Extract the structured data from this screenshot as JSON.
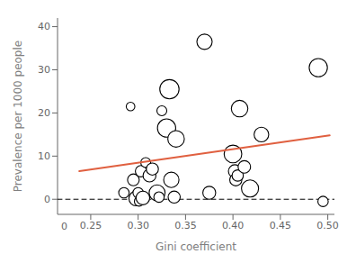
{
  "chart_data": {
    "type": "scatter",
    "xlabel": "Gini coefficient",
    "ylabel": "Prevalence per 1000 people",
    "xlim": [
      0.215,
      0.507
    ],
    "ylim": [
      -3.5,
      42
    ],
    "xticks": [
      0.25,
      {
        "value": 0.3,
        "label": "0.30"
      },
      0.35,
      {
        "value": 0.4,
        "label": "0.40"
      },
      0.45,
      {
        "value": 0.5,
        "label": "0.50"
      }
    ],
    "yticks": [
      0,
      10,
      20,
      30,
      40
    ],
    "grid": false,
    "annotations": [
      {
        "text": "0",
        "x": 0.222,
        "y": -3.5
      }
    ],
    "series": [
      {
        "type": "line",
        "line_style": "dashed",
        "color": "black",
        "x": [
          0.215,
          0.507
        ],
        "values": [
          0.0,
          0.0
        ]
      },
      {
        "type": "scatter",
        "marker": "circle",
        "color": "black",
        "x": [
          0.285,
          0.292,
          0.295,
          0.298,
          0.3,
          0.301,
          0.303,
          0.305,
          0.308,
          0.312,
          0.315,
          0.32,
          0.322,
          0.325,
          0.33,
          0.333,
          0.335,
          0.338,
          0.34,
          0.37,
          0.375,
          0.4,
          0.402,
          0.403,
          0.405,
          0.407,
          0.412,
          0.418,
          0.43,
          0.49,
          0.495
        ],
        "values": [
          1.5,
          21.5,
          4.5,
          0.2,
          1.5,
          -0.5,
          6.5,
          0.3,
          8.5,
          5.5,
          7.0,
          1.5,
          0.5,
          20.5,
          16.5,
          25.5,
          4.5,
          0.5,
          14.0,
          36.5,
          1.5,
          10.5,
          6.5,
          4.5,
          5.5,
          21.0,
          7.5,
          2.5,
          15.0,
          30.5,
          -0.5
        ],
        "sizes": [
          55,
          38,
          70,
          110,
          55,
          45,
          65,
          95,
          50,
          85,
          75,
          130,
          55,
          50,
          170,
          190,
          120,
          75,
          140,
          120,
          85,
          160,
          85,
          75,
          65,
          140,
          80,
          150,
          110,
          170,
          55
        ]
      },
      {
        "type": "line",
        "line_style": "solid",
        "color": "#E06040",
        "x": [
          0.238,
          0.502
        ],
        "values": [
          6.5,
          14.8
        ]
      }
    ]
  }
}
